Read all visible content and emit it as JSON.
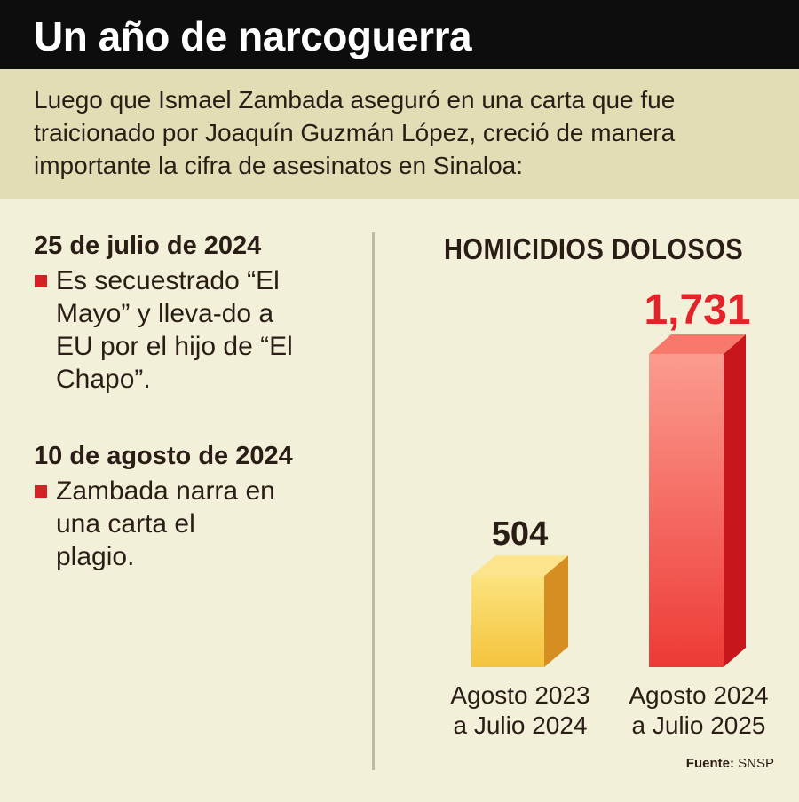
{
  "header": {
    "title": "Un año de narcoguerra"
  },
  "intro": {
    "text": "Luego que Ismael Zambada aseguró en una carta que fue traicionado por Joaquín Guzmán López, creció de manera importante la cifra de asesinatos en Sinaloa:"
  },
  "events": [
    {
      "date": "25 de julio de 2024",
      "text": "Es secuestrado “El Mayo” y lleva-do a EU por el hijo de “El Chapo”."
    },
    {
      "date": "10 de agosto de 2024",
      "text": "Zambada narra en una carta el plagio."
    }
  ],
  "chart_data": {
    "type": "bar",
    "title": "HOMICIDIOS DOLOSOS",
    "categories": [
      "Agosto 2023 a Julio 2024",
      "Agosto 2024 a Julio 2025"
    ],
    "category_lines": [
      [
        "Agosto 2023",
        "a Julio 2024"
      ],
      [
        "Agosto 2024",
        "a Julio 2025"
      ]
    ],
    "values": [
      504,
      1731
    ],
    "value_labels": [
      "504",
      "1,731"
    ],
    "colors": {
      "bar1_front": "#f8da5e",
      "bar1_side": "#d68e22",
      "bar1_top": "#fbe48c",
      "bar2_front": "#fb8c80",
      "bar2_side": "#c8161d",
      "bar2_top": "#f6796c",
      "label1": "#2a1d16",
      "label2": "#e32329"
    },
    "ylim": [
      0,
      1731
    ]
  },
  "source": {
    "label": "Fuente:",
    "value": "SNSP"
  }
}
